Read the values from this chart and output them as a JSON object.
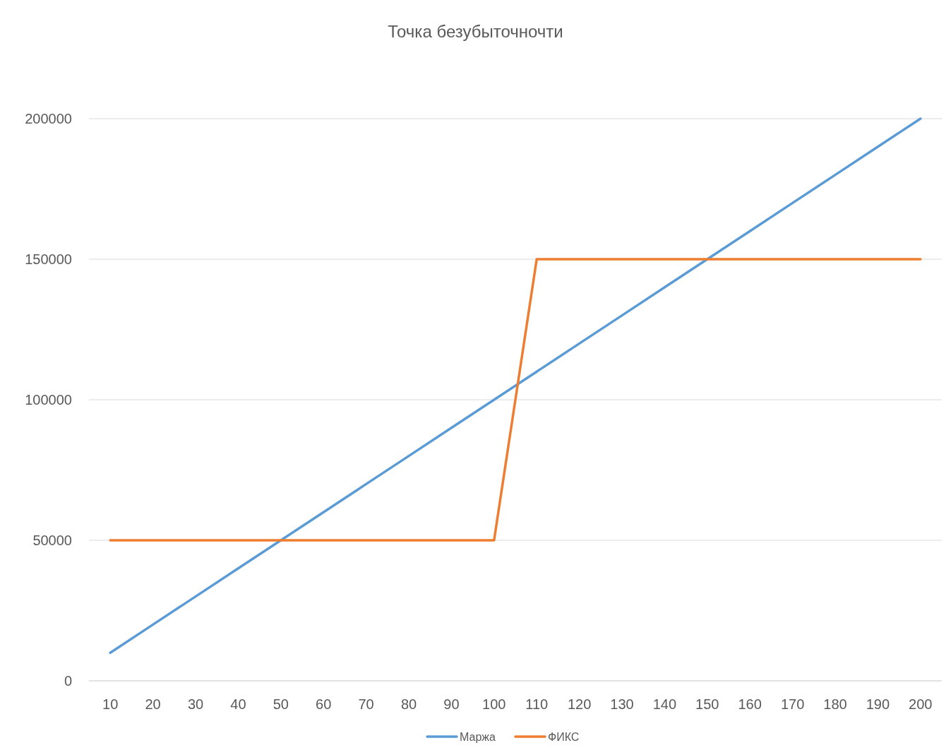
{
  "chart_data": {
    "type": "line",
    "title": "Точка безубыточночти",
    "categories": [
      "10",
      "20",
      "30",
      "40",
      "50",
      "60",
      "70",
      "80",
      "90",
      "100",
      "110",
      "120",
      "130",
      "140",
      "150",
      "160",
      "170",
      "180",
      "190",
      "200"
    ],
    "series": [
      {
        "name": "Маржа",
        "color": "#5b9bd5",
        "values": [
          10000,
          20000,
          30000,
          40000,
          50000,
          60000,
          70000,
          80000,
          90000,
          100000,
          110000,
          120000,
          130000,
          140000,
          150000,
          160000,
          170000,
          180000,
          190000,
          200000
        ]
      },
      {
        "name": "ФИКС",
        "color": "#ed7d31",
        "values": [
          50000,
          50000,
          50000,
          50000,
          50000,
          50000,
          50000,
          50000,
          50000,
          50000,
          150000,
          150000,
          150000,
          150000,
          150000,
          150000,
          150000,
          150000,
          150000,
          150000
        ]
      }
    ],
    "ylim": [
      0,
      200000
    ],
    "yticks": [
      0,
      50000,
      100000,
      150000,
      200000
    ],
    "grid": "y",
    "legend": "bottom",
    "marker": "none",
    "line_style": "solid"
  }
}
